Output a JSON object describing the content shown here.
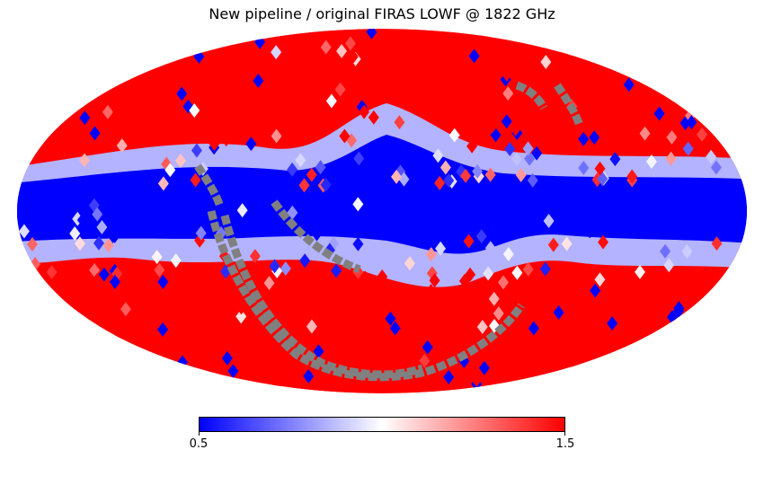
{
  "chart_data": {
    "type": "heatmap",
    "projection": "mollweide",
    "title": "New pipeline / original FIRAS LOWF @ 1822 GHz",
    "colormap": "bwr",
    "colors": {
      "low": "#0000ff",
      "mid": "#ffffff",
      "high": "#ff0000",
      "masked": "#808080"
    },
    "vmin": 0.5,
    "vmax": 1.5,
    "colorbar": {
      "orientation": "horizontal",
      "tick_labels": [
        "0.5",
        "1.5"
      ]
    },
    "region_values": {
      "galactic_plane": 0.5,
      "plane_edge": 0.85,
      "high_latitude": 1.5,
      "masked_stripes": "masked"
    }
  }
}
